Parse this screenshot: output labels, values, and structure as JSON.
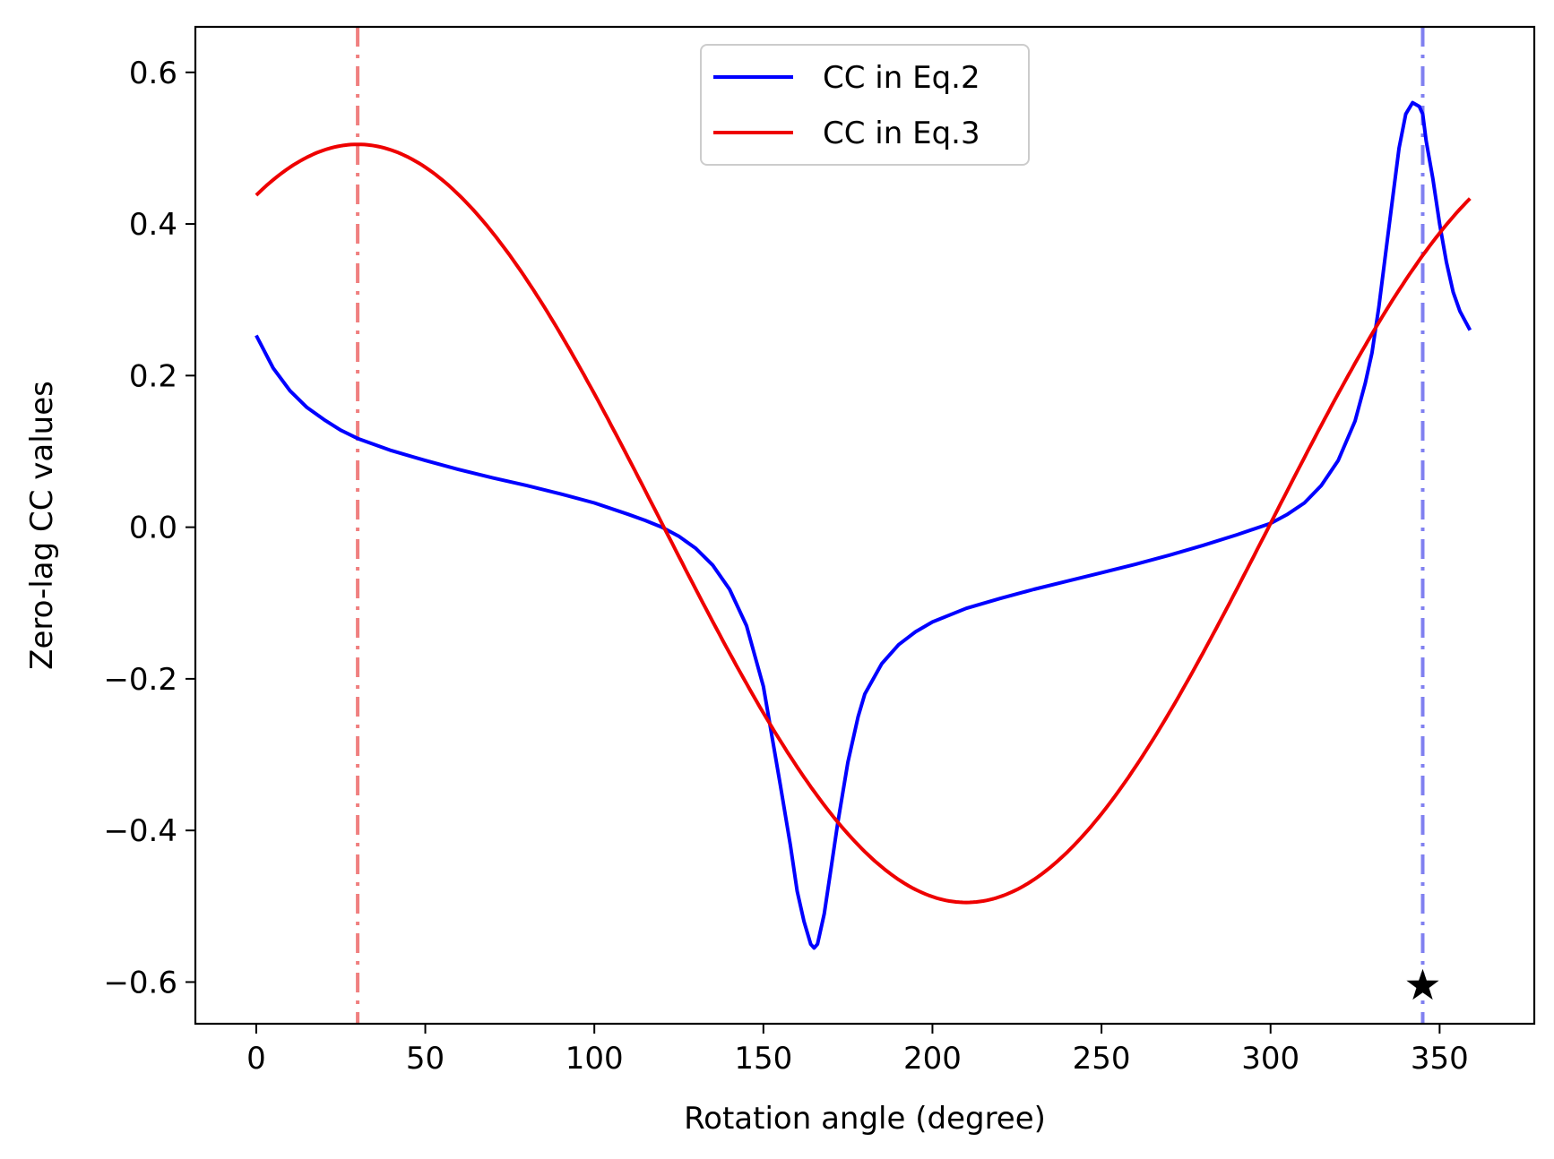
{
  "chart_data": {
    "type": "line",
    "xlabel": "Rotation angle (degree)",
    "ylabel": "Zero-lag CC values",
    "xlim": [
      -18,
      378
    ],
    "ylim": [
      -0.655,
      0.66
    ],
    "xticks": [
      0,
      50,
      100,
      150,
      200,
      250,
      300,
      350
    ],
    "xtick_labels": [
      "0",
      "50",
      "100",
      "150",
      "200",
      "250",
      "300",
      "350"
    ],
    "yticks": [
      -0.6,
      -0.4,
      -0.2,
      0.0,
      0.2,
      0.4,
      0.6
    ],
    "ytick_labels": [
      "−0.6",
      "−0.4",
      "−0.2",
      "0.0",
      "0.2",
      "0.4",
      "0.6"
    ],
    "grid": false,
    "legend": {
      "placement": "upper-center"
    },
    "series": [
      {
        "name": "CC in Eq.2",
        "color": "#0000ff",
        "x": [
          0,
          5,
          10,
          15,
          20,
          25,
          30,
          40,
          50,
          60,
          70,
          80,
          90,
          100,
          110,
          115,
          120,
          125,
          130,
          135,
          140,
          145,
          150,
          155,
          158,
          160,
          162,
          164,
          165,
          166,
          168,
          170,
          172,
          175,
          178,
          180,
          185,
          190,
          195,
          200,
          210,
          220,
          230,
          240,
          250,
          260,
          270,
          280,
          290,
          300,
          305,
          310,
          315,
          320,
          325,
          328,
          330,
          332,
          334,
          336,
          338,
          340,
          342,
          344,
          345,
          346,
          348,
          350,
          352,
          354,
          356,
          359
        ],
        "y": [
          0.253,
          0.21,
          0.18,
          0.158,
          0.142,
          0.128,
          0.117,
          0.101,
          0.088,
          0.076,
          0.065,
          0.055,
          0.044,
          0.032,
          0.017,
          0.009,
          0.0,
          -0.012,
          -0.028,
          -0.05,
          -0.082,
          -0.13,
          -0.21,
          -0.34,
          -0.42,
          -0.48,
          -0.52,
          -0.55,
          -0.555,
          -0.55,
          -0.51,
          -0.45,
          -0.39,
          -0.31,
          -0.25,
          -0.22,
          -0.18,
          -0.155,
          -0.138,
          -0.125,
          -0.107,
          -0.094,
          -0.082,
          -0.071,
          -0.06,
          -0.049,
          -0.037,
          -0.024,
          -0.01,
          0.005,
          0.017,
          0.032,
          0.055,
          0.088,
          0.14,
          0.19,
          0.23,
          0.29,
          0.36,
          0.43,
          0.5,
          0.545,
          0.56,
          0.555,
          0.545,
          0.51,
          0.46,
          0.4,
          0.35,
          0.31,
          0.285,
          0.26
        ]
      },
      {
        "name": "CC in Eq.3",
        "color": "#ee0000",
        "function": "0.5*cos(x-30deg)+0.005",
        "x_start": 0,
        "x_end": 359
      }
    ],
    "vlines": [
      {
        "x": 30,
        "color": "#f08080",
        "style": "dashdot"
      },
      {
        "x": 345,
        "color": "#8080f0",
        "style": "dashdot"
      }
    ],
    "markers": [
      {
        "x": 345,
        "y": -0.605,
        "shape": "star",
        "color": "#000000"
      }
    ]
  }
}
